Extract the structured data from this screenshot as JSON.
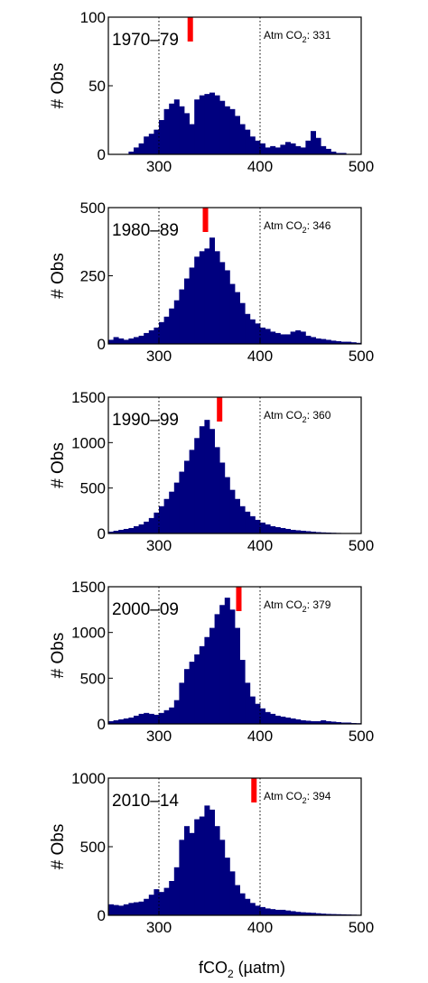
{
  "chart_data": [
    {
      "type": "bar",
      "period_label": "1970–79",
      "atm_label": "Atm CO",
      "atm_sub": "2",
      "atm_value_text": ": 331",
      "atm_value": 331,
      "ylabel": "# Obs",
      "xlim": [
        250,
        500
      ],
      "ylim": [
        0,
        100
      ],
      "yticks": [
        0,
        50,
        100
      ],
      "xticks": [
        300,
        400,
        500
      ],
      "ref_lines": [
        300,
        400
      ],
      "bin_start": 250,
      "bin_width": 5,
      "values": [
        0,
        0,
        0,
        0,
        2,
        5,
        8,
        13,
        15,
        18,
        25,
        33,
        37,
        40,
        35,
        30,
        22,
        40,
        43,
        44,
        45,
        43,
        39,
        35,
        33,
        28,
        22,
        18,
        13,
        10,
        8,
        5,
        6,
        5,
        7,
        9,
        8,
        6,
        5,
        10,
        17,
        12,
        6,
        4,
        2,
        1,
        1,
        0,
        0,
        0
      ]
    },
    {
      "type": "bar",
      "period_label": "1980–89",
      "atm_label": "Atm CO",
      "atm_sub": "2",
      "atm_value_text": ": 346",
      "atm_value": 346,
      "ylabel": "# Obs",
      "xlim": [
        250,
        500
      ],
      "ylim": [
        0,
        500
      ],
      "yticks": [
        0,
        250,
        500
      ],
      "xticks": [
        300,
        400,
        500
      ],
      "ref_lines": [
        300,
        400
      ],
      "bin_start": 250,
      "bin_width": 5,
      "values": [
        15,
        25,
        20,
        15,
        20,
        25,
        30,
        40,
        50,
        60,
        80,
        100,
        130,
        160,
        200,
        240,
        280,
        320,
        340,
        350,
        390,
        340,
        300,
        270,
        220,
        190,
        150,
        110,
        90,
        75,
        60,
        55,
        45,
        40,
        35,
        35,
        45,
        50,
        45,
        30,
        25,
        20,
        18,
        15,
        12,
        10,
        8,
        8,
        6,
        4
      ]
    },
    {
      "type": "bar",
      "period_label": "1990–99",
      "atm_label": "Atm CO",
      "atm_sub": "2",
      "atm_value_text": ": 360",
      "atm_value": 360,
      "ylabel": "# Obs",
      "xlim": [
        250,
        500
      ],
      "ylim": [
        0,
        1500
      ],
      "yticks": [
        0,
        500,
        1000,
        1500
      ],
      "xticks": [
        300,
        400,
        500
      ],
      "ref_lines": [
        300,
        400
      ],
      "bin_start": 250,
      "bin_width": 5,
      "values": [
        20,
        30,
        40,
        50,
        60,
        80,
        100,
        130,
        170,
        230,
        300,
        380,
        460,
        560,
        680,
        800,
        920,
        1050,
        1180,
        1250,
        1150,
        950,
        780,
        620,
        480,
        380,
        300,
        240,
        190,
        150,
        120,
        100,
        80,
        70,
        60,
        50,
        40,
        35,
        30,
        25,
        20,
        15,
        12,
        10,
        8,
        6,
        5,
        4,
        3,
        2
      ]
    },
    {
      "type": "bar",
      "period_label": "2000–09",
      "atm_label": "Atm CO",
      "atm_sub": "2",
      "atm_value_text": ": 379",
      "atm_value": 379,
      "ylabel": "# Obs",
      "xlim": [
        250,
        500
      ],
      "ylim": [
        0,
        1500
      ],
      "yticks": [
        0,
        500,
        1000,
        1500
      ],
      "xticks": [
        300,
        400,
        500
      ],
      "ref_lines": [
        300,
        400
      ],
      "bin_start": 250,
      "bin_width": 5,
      "values": [
        30,
        40,
        50,
        60,
        70,
        90,
        110,
        120,
        110,
        100,
        120,
        150,
        180,
        260,
        450,
        600,
        680,
        760,
        850,
        950,
        1050,
        1200,
        1300,
        1380,
        1250,
        1050,
        700,
        450,
        300,
        220,
        170,
        130,
        110,
        90,
        80,
        70,
        60,
        50,
        40,
        35,
        30,
        30,
        40,
        30,
        25,
        20,
        15,
        15,
        10,
        8
      ]
    },
    {
      "type": "bar",
      "period_label": "2010–14",
      "atm_label": "Atm CO",
      "atm_sub": "2",
      "atm_value_text": ": 394",
      "atm_value": 394,
      "ylabel": "# Obs",
      "xlim": [
        250,
        500
      ],
      "ylim": [
        0,
        1000
      ],
      "yticks": [
        0,
        500,
        1000
      ],
      "xticks": [
        300,
        400,
        500
      ],
      "ref_lines": [
        300,
        400
      ],
      "bin_start": 250,
      "bin_width": 5,
      "values": [
        80,
        75,
        70,
        80,
        90,
        95,
        100,
        120,
        150,
        190,
        170,
        200,
        250,
        350,
        550,
        650,
        600,
        700,
        720,
        800,
        770,
        650,
        550,
        420,
        320,
        220,
        160,
        120,
        90,
        70,
        60,
        50,
        45,
        40,
        40,
        35,
        30,
        25,
        22,
        20,
        18,
        15,
        12,
        10,
        9,
        8,
        7,
        6,
        5,
        4
      ]
    }
  ],
  "xlabel": {
    "prefix": "fCO",
    "sub": "2",
    "suffix": " (µatm)"
  },
  "colors": {
    "bar": "#00007f",
    "marker": "#ff0000",
    "axis": "#000000",
    "background": "#ffffff"
  }
}
